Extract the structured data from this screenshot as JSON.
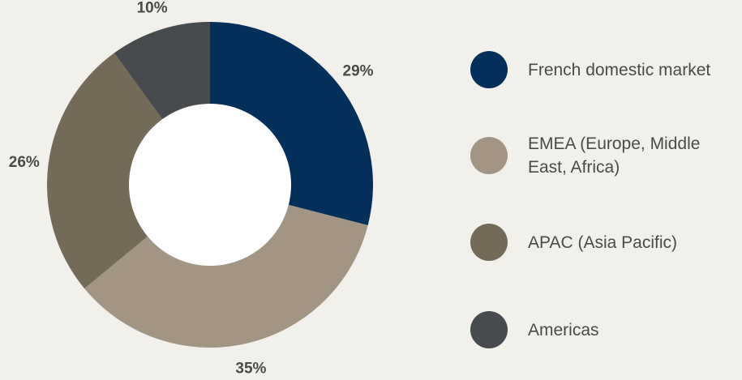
{
  "chart_data": {
    "type": "pie",
    "style": "donut",
    "title": "",
    "legend_position": "right",
    "slices": [
      {
        "name": "French domestic market",
        "value": 29,
        "label": "29%",
        "color": "#02305a"
      },
      {
        "name": "EMEA (Europe, Middle East, Africa)",
        "value": 35,
        "label": "35%",
        "color": "#a29584"
      },
      {
        "name": "APAC (Asia Pacific)",
        "value": 26,
        "label": "26%",
        "color": "#736a57"
      },
      {
        "name": "Americas",
        "value": 10,
        "label": "10%",
        "color": "#474b4e"
      }
    ]
  },
  "legend": {
    "items": [
      {
        "label": "French domestic market",
        "color": "#02305a"
      },
      {
        "label": "EMEA (Europe, Middle East, Africa)",
        "color": "#a29584"
      },
      {
        "label": "APAC (Asia Pacific)",
        "color": "#736a57"
      },
      {
        "label": "Americas",
        "color": "#474b4e"
      }
    ]
  },
  "colors": {
    "background": "#f2f0eb",
    "hole": "#ffffff",
    "text": "#4a4a48"
  }
}
